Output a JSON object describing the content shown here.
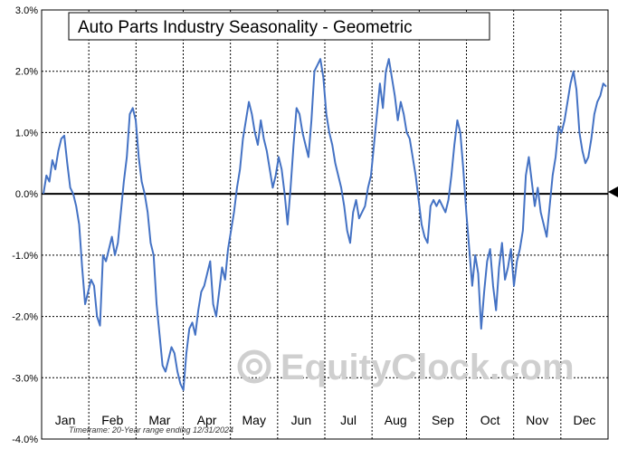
{
  "chart_data": {
    "type": "line",
    "title": "Auto Parts Industry Seasonality - Geometric",
    "footnote": "Timeframe: 20-Year range ending 12/31/2024",
    "watermark": "EquityClock.com",
    "ylim": [
      -4.0,
      3.0
    ],
    "yticks": [
      "3.0%",
      "2.0%",
      "1.0%",
      "0.0%",
      "-1.0%",
      "-2.0%",
      "-3.0%",
      "-4.0%"
    ],
    "ytick_values": [
      3,
      2,
      1,
      0,
      -1,
      -2,
      -3,
      -4
    ],
    "months": [
      "Jan",
      "Feb",
      "Mar",
      "Apr",
      "May",
      "Jun",
      "Jul",
      "Aug",
      "Sep",
      "Oct",
      "Nov",
      "Dec"
    ],
    "grid": true,
    "line_color": "#4472C4",
    "series": [
      {
        "values": [
          0.0,
          0.3,
          0.2,
          0.55,
          0.4,
          0.7,
          0.9,
          0.95,
          0.5,
          0.1,
          0.0,
          -0.2,
          -0.5,
          -1.2,
          -1.8,
          -1.6,
          -1.4,
          -1.5,
          -2.0,
          -2.15,
          -1.0,
          -1.1,
          -0.9,
          -0.7,
          -1.0,
          -0.8,
          -0.3,
          0.2,
          0.6,
          1.3,
          1.4,
          1.2,
          0.6,
          0.2,
          0.0,
          -0.3,
          -0.8,
          -1.0,
          -1.8,
          -2.3,
          -2.8,
          -2.9,
          -2.7,
          -2.5,
          -2.6,
          -2.9,
          -3.1,
          -3.2,
          -2.6,
          -2.2,
          -2.1,
          -2.3,
          -1.9,
          -1.6,
          -1.5,
          -1.3,
          -1.1,
          -1.8,
          -2.0,
          -1.6,
          -1.2,
          -1.4,
          -0.9,
          -0.6,
          -0.3,
          0.1,
          0.4,
          0.9,
          1.2,
          1.5,
          1.3,
          1.0,
          0.8,
          1.2,
          0.9,
          0.7,
          0.4,
          0.1,
          0.3,
          0.6,
          0.4,
          0.0,
          -0.5,
          0.1,
          0.8,
          1.4,
          1.3,
          1.0,
          0.8,
          0.6,
          1.2,
          2.0,
          2.1,
          2.2,
          1.9,
          1.3,
          1.0,
          0.8,
          0.5,
          0.3,
          0.1,
          -0.2,
          -0.6,
          -0.8,
          -0.3,
          -0.1,
          -0.4,
          -0.3,
          -0.2,
          0.1,
          0.3,
          0.8,
          1.3,
          1.8,
          1.4,
          2.0,
          2.2,
          1.9,
          1.6,
          1.2,
          1.5,
          1.3,
          1.0,
          0.9,
          0.6,
          0.3,
          -0.1,
          -0.5,
          -0.7,
          -0.8,
          -0.2,
          -0.1,
          -0.2,
          -0.1,
          -0.2,
          -0.3,
          -0.1,
          0.3,
          0.8,
          1.2,
          1.0,
          0.4,
          -0.3,
          -0.9,
          -1.5,
          -1.0,
          -1.3,
          -2.2,
          -1.6,
          -1.1,
          -0.9,
          -1.5,
          -1.9,
          -1.2,
          -0.8,
          -1.4,
          -1.2,
          -0.9,
          -1.5,
          -1.1,
          -0.9,
          -0.6,
          0.3,
          0.6,
          0.2,
          -0.2,
          0.1,
          -0.3,
          -0.5,
          -0.7,
          -0.2,
          0.3,
          0.6,
          1.1,
          1.0,
          1.2,
          1.5,
          1.8,
          2.0,
          1.7,
          1.0,
          0.7,
          0.5,
          0.6,
          0.9,
          1.3,
          1.5,
          1.6,
          1.8,
          1.75
        ]
      }
    ]
  }
}
